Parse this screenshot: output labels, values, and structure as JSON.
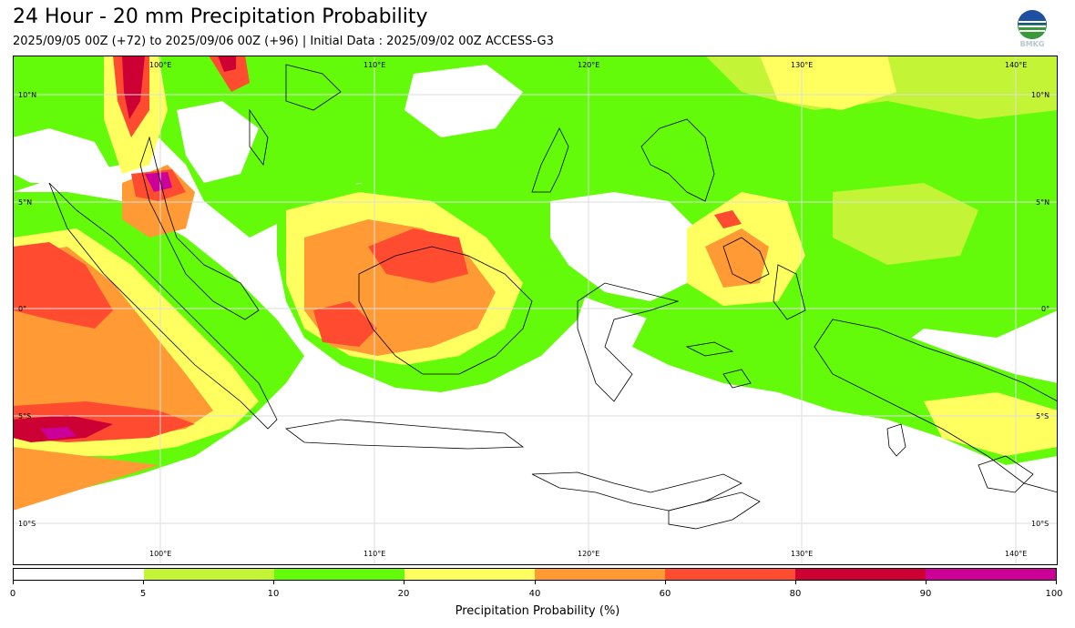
{
  "header": {
    "title": "24 Hour - 20 mm Precipitation Probability",
    "subtitle": "2025/09/05 00Z (+72) to 2025/09/06 00Z (+96) | Initial Data : 2025/09/02 00Z ACCESS-G3"
  },
  "logo": {
    "text": "BMKG",
    "icon": "bmkg-logo-icon"
  },
  "map": {
    "lon_labels_top": [
      "100°E",
      "110°E",
      "120°E",
      "130°E",
      "140°E"
    ],
    "lon_labels_bottom": [
      "100°E",
      "110°E",
      "120°E",
      "130°E",
      "140°E"
    ],
    "lat_labels_left": [
      "10°N",
      "5°N",
      "0°",
      "5°S",
      "10°S"
    ],
    "lat_labels_right": [
      "10°N",
      "5°N",
      "0°",
      "5°S",
      "10°S"
    ]
  },
  "colorbar": {
    "label": "Precipitation Probability (%)",
    "ticks": [
      "0",
      "5",
      "10",
      "20",
      "40",
      "60",
      "80",
      "90",
      "100"
    ],
    "colors": [
      "#ffffff",
      "#c3f536",
      "#63fb0a",
      "#ffff60",
      "#ff9a35",
      "#ff4b30",
      "#cc0033",
      "#cc0099"
    ]
  }
}
